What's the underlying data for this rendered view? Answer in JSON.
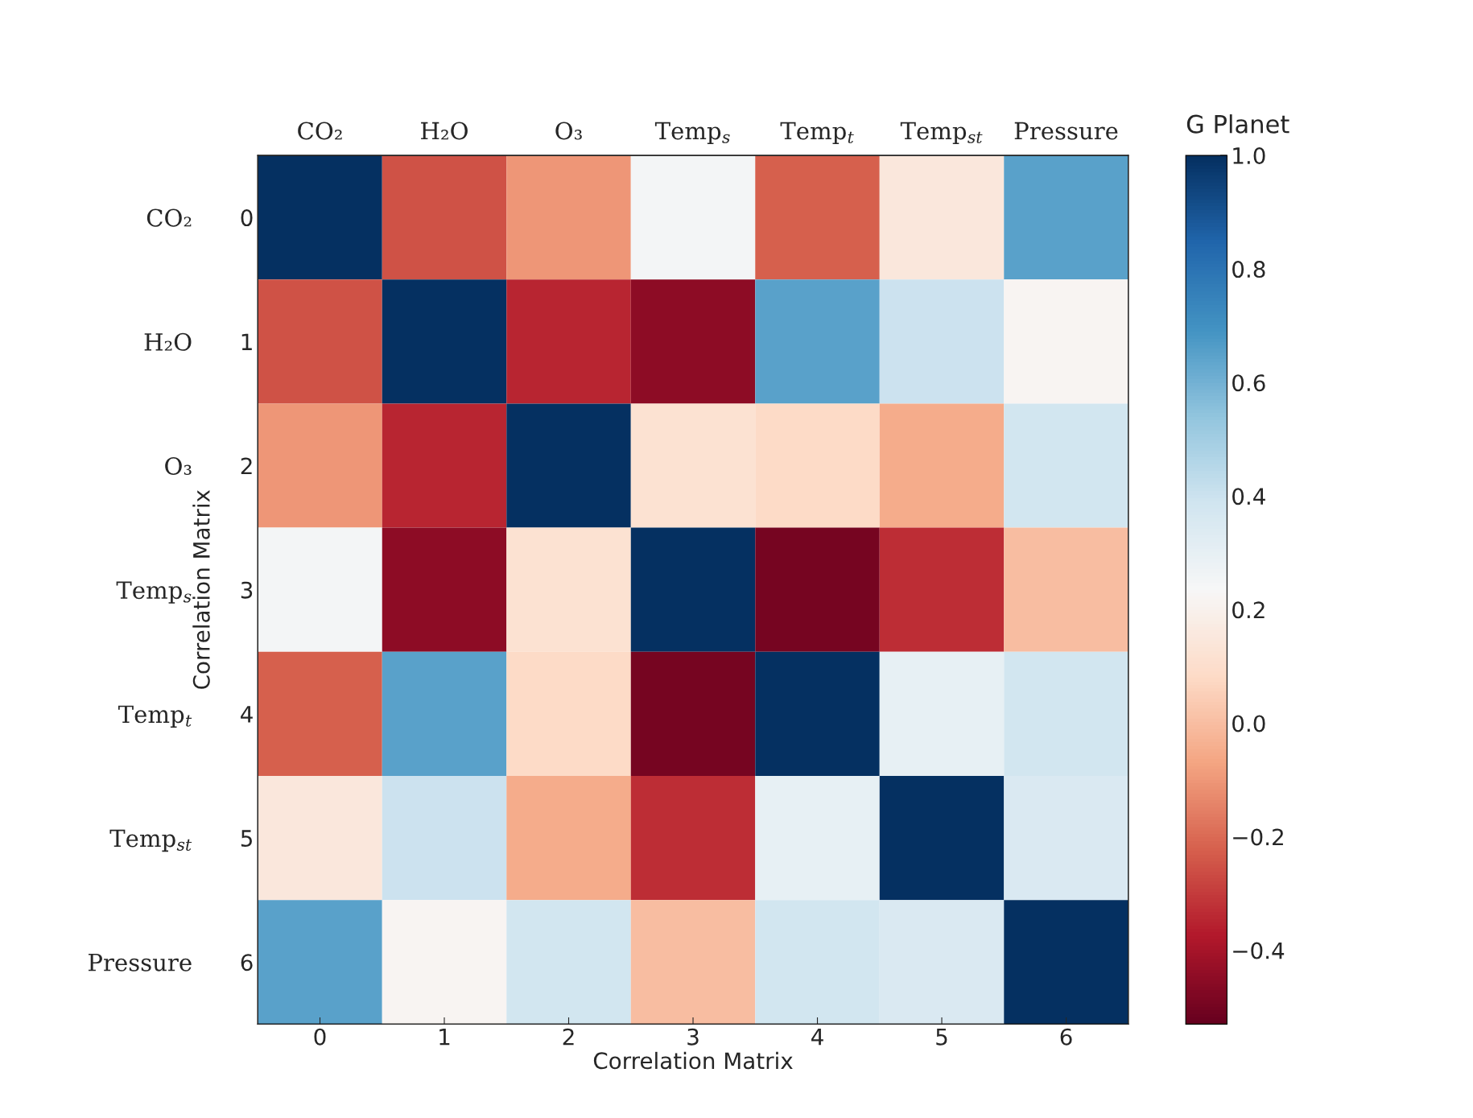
{
  "chart_data": {
    "type": "heatmap",
    "xlabel": "Correlation Matrix",
    "ylabel": "Correlation Matrix",
    "clabel": "G Planet",
    "categories": [
      "CO₂",
      "H₂O",
      "O₃",
      "Temp$_{s}$",
      "Temp$_{t}$",
      "Temp$_{st}$",
      "Pressure"
    ],
    "y_categories": [
      "0",
      "1",
      "2",
      "3",
      "4",
      "5",
      "6"
    ],
    "x2lim": [
      -0.5,
      6.5
    ],
    "x2ticks": [
      0,
      1,
      2,
      3,
      4,
      5,
      6
    ],
    "y2_categories": [
      "CO₂",
      "H₂O",
      "O₃",
      "Temp$_{s}$",
      "Temp$_{t}$",
      "Temp$_{st}$",
      "Pressure"
    ],
    "cells": [
      [
        1.0,
        -0.25,
        -0.1,
        0.25,
        -0.22,
        0.15,
        0.65
      ],
      [
        -0.25,
        1.0,
        -0.35,
        -0.45,
        0.65,
        0.4,
        0.22
      ],
      [
        -0.1,
        -0.35,
        1.0,
        0.12,
        0.08,
        -0.05,
        0.38
      ],
      [
        0.25,
        -0.45,
        0.12,
        1.0,
        -0.5,
        -0.33,
        0.0
      ],
      [
        -0.22,
        0.65,
        0.08,
        -0.5,
        1.0,
        0.3,
        0.38
      ],
      [
        0.15,
        0.4,
        -0.05,
        -0.33,
        0.3,
        1.0,
        0.35
      ],
      [
        0.65,
        0.22,
        0.38,
        0.0,
        0.38,
        0.35,
        1.0
      ]
    ],
    "clim": [
      -0.53,
      1.0
    ],
    "cticks": [
      {
        "value": -0.4,
        "label": "−0.4"
      },
      {
        "value": -0.2,
        "label": "−0.2"
      },
      {
        "value": 0,
        "label": "0.0"
      },
      0.2,
      0.4,
      0.6,
      0.8,
      {
        "value": 1,
        "label": "1.0"
      }
    ],
    "grid": false
  }
}
